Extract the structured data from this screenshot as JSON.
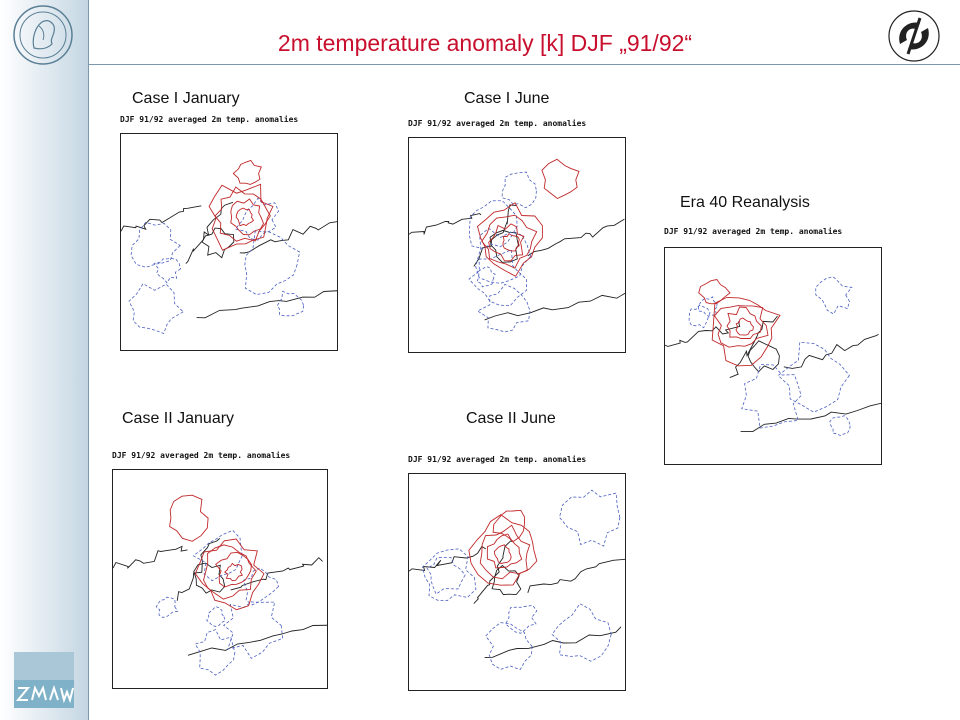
{
  "title": "2m temperature anomaly [k]  DJF „91/92“",
  "colors": {
    "title": "#c8102e",
    "positive_contour": "#c0282a",
    "negative_contour": "#4a5fc0",
    "coastline": "#222222",
    "sidebar": "#c4d6e2"
  },
  "logos": {
    "left": "max-planck-seal",
    "right": "institute-logo",
    "bottom_left": "zmaw-logo"
  },
  "panels": [
    {
      "id": "case1-january",
      "label": "Case I January",
      "plot_title": "DJF 91/92 averaged 2m temp. anomalies"
    },
    {
      "id": "case1-june",
      "label": "Case I June",
      "plot_title": "DJF 91/92 averaged 2m temp. anomalies"
    },
    {
      "id": "era40",
      "label": "Era 40 Reanalysis",
      "plot_title": "DJF 91/92 averaged 2m temp. anomalies"
    },
    {
      "id": "case2-january",
      "label": "Case II January",
      "plot_title": "DJF 91/92 averaged 2m temp. anomalies"
    },
    {
      "id": "case2-june",
      "label": "Case II June",
      "plot_title": "DJF 91/92 averaged 2m temp. anomalies"
    }
  ]
}
